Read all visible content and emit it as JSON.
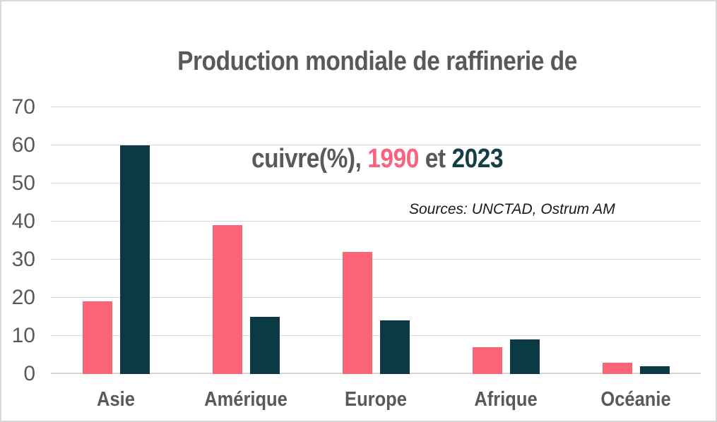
{
  "title": {
    "line1": "Production mondiale de raffinerie de",
    "line2_prefix": "cuivre(%), ",
    "year_1990": "1990",
    "separator": " et ",
    "year_2023": "2023"
  },
  "annotation": {
    "text": "Sources: UNCTAD, Ostrum AM"
  },
  "colors": {
    "series_1990": "#fb6377",
    "series_2023": "#0c3a44",
    "title_text": "#595959",
    "axis_text": "#595959",
    "gridline": "#d9d9d9"
  },
  "chart_data": {
    "type": "bar",
    "title": "Production mondiale de raffinerie de cuivre(%), 1990 et 2023",
    "categories": [
      "Asie",
      "Amérique",
      "Europe",
      "Afrique",
      "Océanie"
    ],
    "series": [
      {
        "name": "1990",
        "color": "#fb6377",
        "values": [
          19,
          39,
          32,
          7,
          3
        ]
      },
      {
        "name": "2023",
        "color": "#0c3a44",
        "values": [
          60,
          15,
          14,
          9,
          2
        ]
      }
    ],
    "xlabel": "",
    "ylabel": "",
    "ylim": [
      0,
      70
    ],
    "ytick_step": 10,
    "grid": true,
    "legend": "none",
    "annotation": "Sources: UNCTAD, Ostrum AM"
  }
}
